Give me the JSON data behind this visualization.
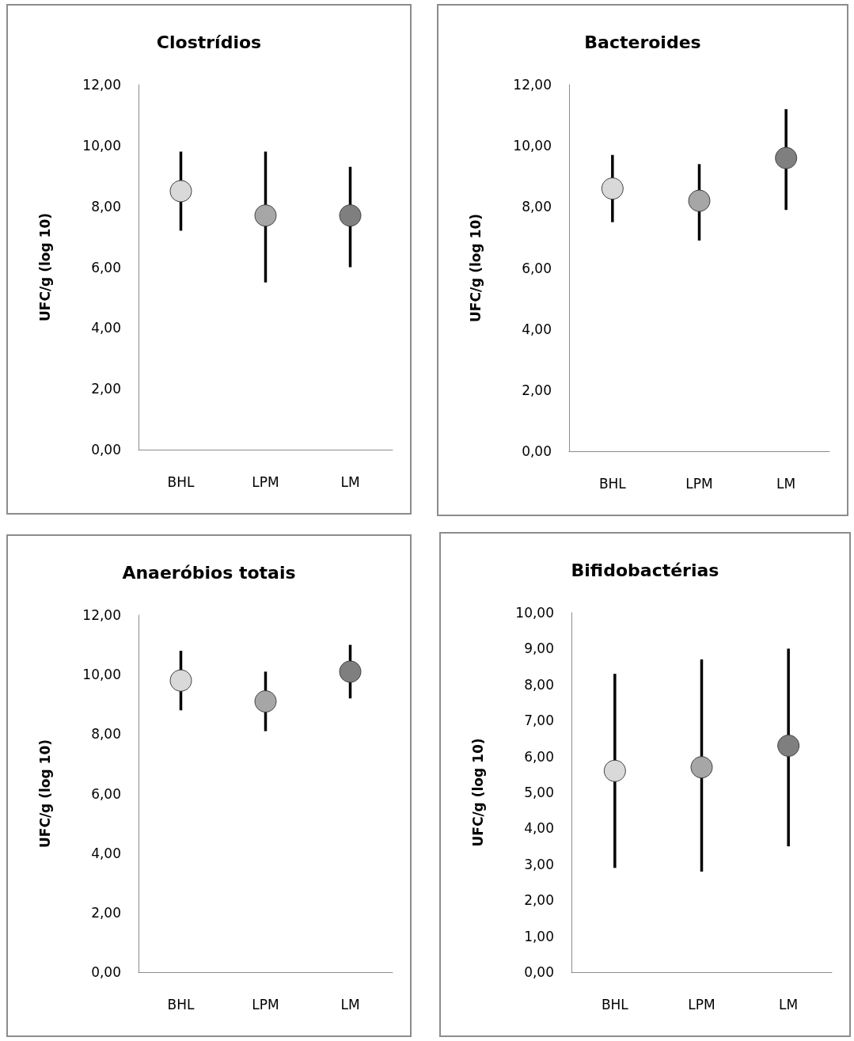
{
  "chart_data": [
    {
      "type": "scatter",
      "title": "Clostrídios",
      "ylabel": "UFC/g (log 10)",
      "categories": [
        "BHL",
        "LPM",
        "LM"
      ],
      "values": [
        8.5,
        7.7,
        7.7
      ],
      "errors": [
        [
          7.2,
          9.8
        ],
        [
          5.5,
          9.8
        ],
        [
          6.0,
          9.3
        ]
      ],
      "colors": [
        "#d9d9d9",
        "#a6a6a6",
        "#7f7f7f"
      ],
      "marker": "circle",
      "ylim": [
        0,
        12
      ],
      "yticks": [
        {
          "value": 0,
          "label": "0,00"
        },
        {
          "value": 2,
          "label": "2,00"
        },
        {
          "value": 4,
          "label": "4,00"
        },
        {
          "value": 6,
          "label": "6,00"
        },
        {
          "value": 8,
          "label": "8,00"
        },
        {
          "value": 10,
          "label": "10,00"
        },
        {
          "value": 12,
          "label": "12,00"
        }
      ],
      "grid": false
    },
    {
      "type": "scatter",
      "title": "Bacteroides",
      "ylabel": "UFC/g (log 10)",
      "categories": [
        "BHL",
        "LPM",
        "LM"
      ],
      "values": [
        8.6,
        8.2,
        9.6
      ],
      "errors": [
        [
          7.5,
          9.7
        ],
        [
          6.9,
          9.4
        ],
        [
          7.9,
          11.2
        ]
      ],
      "colors": [
        "#d9d9d9",
        "#a6a6a6",
        "#7f7f7f"
      ],
      "marker": "circle",
      "ylim": [
        0,
        12
      ],
      "yticks": [
        {
          "value": 0,
          "label": "0,00"
        },
        {
          "value": 2,
          "label": "2,00"
        },
        {
          "value": 4,
          "label": "4,00"
        },
        {
          "value": 6,
          "label": "6,00"
        },
        {
          "value": 8,
          "label": "8,00"
        },
        {
          "value": 10,
          "label": "10,00"
        },
        {
          "value": 12,
          "label": "12,00"
        }
      ],
      "grid": false
    },
    {
      "type": "scatter",
      "title": "Anaeróbios totais",
      "ylabel": "UFC/g (log 10)",
      "categories": [
        "BHL",
        "LPM",
        "LM"
      ],
      "values": [
        9.8,
        9.1,
        10.1
      ],
      "errors": [
        [
          8.8,
          10.8
        ],
        [
          8.1,
          10.1
        ],
        [
          9.2,
          11.0
        ]
      ],
      "colors": [
        "#d9d9d9",
        "#a6a6a6",
        "#7f7f7f"
      ],
      "marker": "circle",
      "ylim": [
        0,
        12
      ],
      "yticks": [
        {
          "value": 0,
          "label": "0,00"
        },
        {
          "value": 2,
          "label": "2,00"
        },
        {
          "value": 4,
          "label": "4,00"
        },
        {
          "value": 6,
          "label": "6,00"
        },
        {
          "value": 8,
          "label": "8,00"
        },
        {
          "value": 10,
          "label": "10,00"
        },
        {
          "value": 12,
          "label": "12,00"
        }
      ],
      "grid": false
    },
    {
      "type": "scatter",
      "title": "Bifidobactérias",
      "ylabel": "UFC/g (log 10)",
      "categories": [
        "BHL",
        "LPM",
        "LM"
      ],
      "values": [
        5.6,
        5.7,
        6.3
      ],
      "errors": [
        [
          2.9,
          8.3
        ],
        [
          2.8,
          8.7
        ],
        [
          3.5,
          9.0
        ]
      ],
      "colors": [
        "#d9d9d9",
        "#a6a6a6",
        "#7f7f7f"
      ],
      "marker": "circle",
      "ylim": [
        0,
        10
      ],
      "yticks": [
        {
          "value": 0,
          "label": "0,00"
        },
        {
          "value": 1,
          "label": "1,00"
        },
        {
          "value": 2,
          "label": "2,00"
        },
        {
          "value": 3,
          "label": "3,00"
        },
        {
          "value": 4,
          "label": "4,00"
        },
        {
          "value": 5,
          "label": "5,00"
        },
        {
          "value": 6,
          "label": "6,00"
        },
        {
          "value": 7,
          "label": "7,00"
        },
        {
          "value": 8,
          "label": "8,00"
        },
        {
          "value": 9,
          "label": "9,00"
        },
        {
          "value": 10,
          "label": "10,00"
        }
      ],
      "grid": false
    }
  ]
}
